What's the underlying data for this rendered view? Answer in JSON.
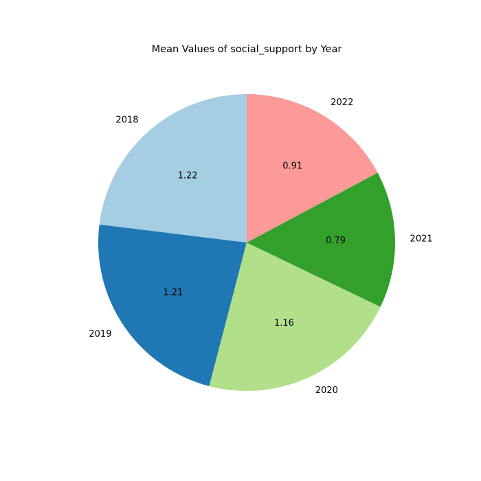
{
  "chart_data": {
    "type": "pie",
    "title": "Mean Values of social_support by Year",
    "categories": [
      "2018",
      "2019",
      "2020",
      "2021",
      "2022"
    ],
    "values": [
      1.22,
      1.21,
      1.16,
      0.79,
      0.91
    ],
    "value_labels": [
      "1.22",
      "1.21",
      "1.16",
      "0.79",
      "0.91"
    ],
    "colors": [
      "#a6cee3",
      "#1f78b4",
      "#b2df8a",
      "#33a02c",
      "#fb9a99"
    ],
    "start_angle_deg": 90,
    "direction": "counterclockwise",
    "legend": "none"
  }
}
